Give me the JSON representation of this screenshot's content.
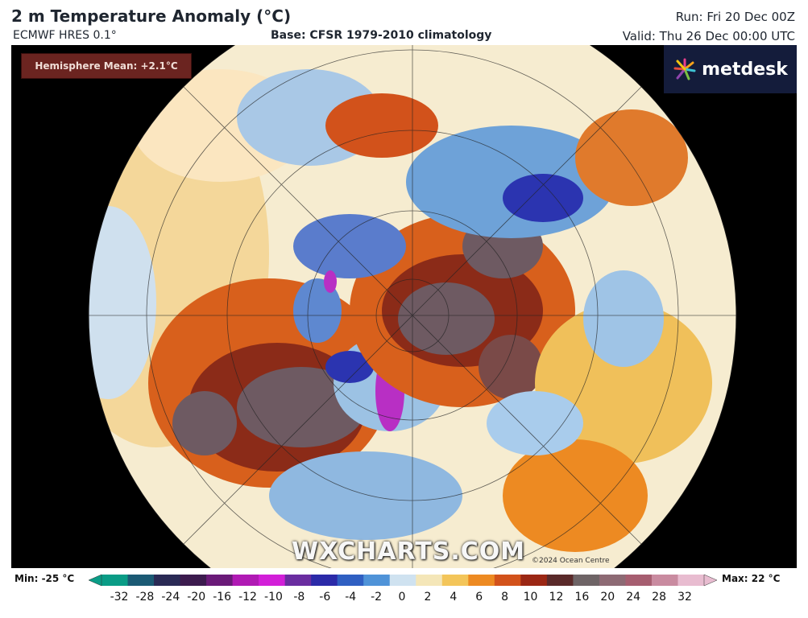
{
  "header": {
    "title": "2 m Temperature Anomaly (°C)",
    "model": "ECMWF HRES 0.1°",
    "base": "Base: CFSR 1979-2010 climatology",
    "run": "Run: Fri 20 Dec 00Z",
    "valid": "Valid: Thu 26 Dec 00:00 UTC"
  },
  "badge": {
    "hemisphere_mean": "Hemisphere Mean: +2.1°C"
  },
  "logo": {
    "text": "metdesk",
    "icon": "metdesk-burst-icon"
  },
  "watermark": "WXCHARTS.COM",
  "copyright": "©2024 Ocean Centre",
  "legend": {
    "min_label": "Min: -25 °C",
    "max_label": "Max: 22 °C",
    "ticks": [
      "-32",
      "-28",
      "-24",
      "-20",
      "-16",
      "-12",
      "-10",
      "-8",
      "-6",
      "-4",
      "-2",
      "0",
      "2",
      "4",
      "6",
      "8",
      "10",
      "12",
      "16",
      "20",
      "24",
      "28",
      "32"
    ],
    "colors": [
      "#0a9c86",
      "#1b5a74",
      "#2a2a55",
      "#3c1b4e",
      "#6a1a78",
      "#b01ab4",
      "#d21fd8",
      "#6a2da0",
      "#2b2aa8",
      "#2f5fc2",
      "#4f93d8",
      "#cfe2f0",
      "#f4e6b8",
      "#f3c55a",
      "#ed8a22",
      "#d2521b",
      "#9b2714",
      "#5a2a2a",
      "#6e6466",
      "#8d6a74",
      "#a65e70",
      "#c98ba0",
      "#e8bcd0"
    ]
  },
  "colors": {
    "warm": "#d8601c",
    "hot": "#7a2617",
    "extreme": "#5a4a50",
    "cold": "#4f8fd6",
    "very_cold": "#2b34b0",
    "purple": "#b82fc4",
    "neutral": "#f5efd9"
  }
}
